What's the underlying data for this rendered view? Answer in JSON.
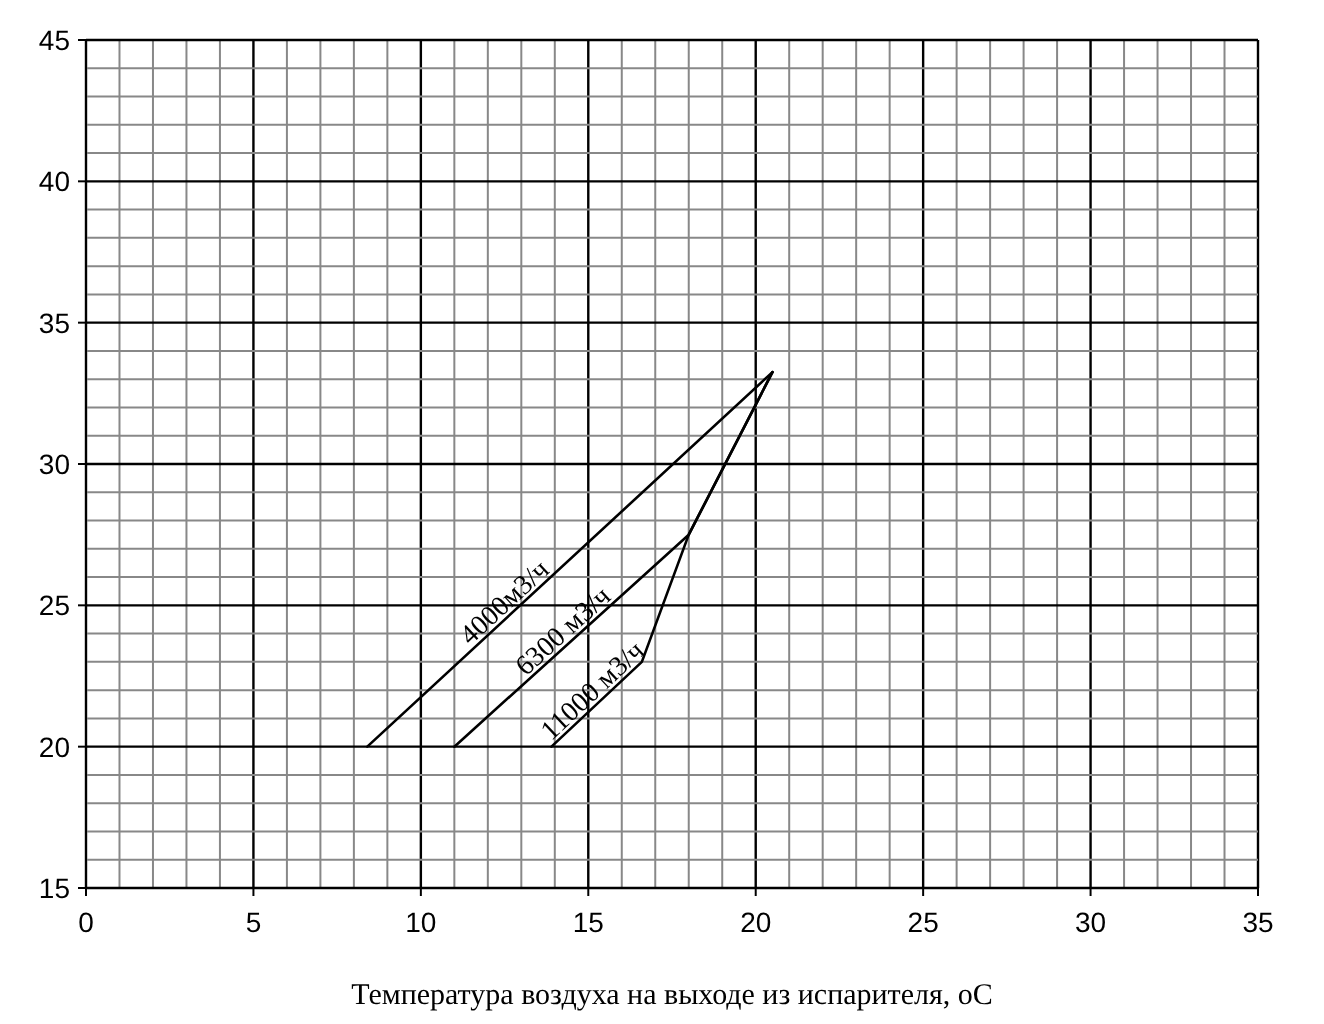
{
  "chart_data": {
    "type": "line",
    "xlabel": "Температура воздуха на выходе из испарителя, оС",
    "xlim": [
      0,
      35
    ],
    "ylim": [
      15,
      45
    ],
    "xticks": [
      0,
      {
        "value": 1,
        "label": null
      },
      {
        "value": 2,
        "label": null
      },
      {
        "value": 3,
        "label": null
      },
      {
        "value": 4,
        "label": null
      },
      5,
      {
        "value": 6,
        "label": null
      },
      {
        "value": 7,
        "label": null
      },
      {
        "value": 8,
        "label": null
      },
      {
        "value": 9,
        "label": null
      },
      10,
      {
        "value": 11,
        "label": null
      },
      {
        "value": 12,
        "label": null
      },
      {
        "value": 13,
        "label": null
      },
      {
        "value": 14,
        "label": null
      },
      15,
      {
        "value": 16,
        "label": null
      },
      {
        "value": 17,
        "label": null
      },
      {
        "value": 18,
        "label": null
      },
      {
        "value": 19,
        "label": null
      },
      20,
      {
        "value": 21,
        "label": null
      },
      {
        "value": 22,
        "label": null
      },
      {
        "value": 23,
        "label": null
      },
      {
        "value": 24,
        "label": null
      },
      25,
      {
        "value": 26,
        "label": null
      },
      {
        "value": 27,
        "label": null
      },
      {
        "value": 28,
        "label": null
      },
      {
        "value": 29,
        "label": null
      },
      30,
      {
        "value": 31,
        "label": null
      },
      {
        "value": 32,
        "label": null
      },
      {
        "value": 33,
        "label": null
      },
      {
        "value": 34,
        "label": null
      },
      35
    ],
    "yticks": [
      15,
      {
        "value": 16,
        "label": null
      },
      {
        "value": 17,
        "label": null
      },
      {
        "value": 18,
        "label": null
      },
      {
        "value": 19,
        "label": null
      },
      20,
      {
        "value": 21,
        "label": null
      },
      {
        "value": 22,
        "label": null
      },
      {
        "value": 23,
        "label": null
      },
      {
        "value": 24,
        "label": null
      },
      25,
      {
        "value": 26,
        "label": null
      },
      {
        "value": 27,
        "label": null
      },
      {
        "value": 28,
        "label": null
      },
      {
        "value": 29,
        "label": null
      },
      30,
      {
        "value": 31,
        "label": null
      },
      {
        "value": 32,
        "label": null
      },
      {
        "value": 33,
        "label": null
      },
      {
        "value": 34,
        "label": null
      },
      35,
      {
        "value": 36,
        "label": null
      },
      {
        "value": 37,
        "label": null
      },
      {
        "value": 38,
        "label": null
      },
      {
        "value": 39,
        "label": null
      },
      40,
      {
        "value": 41,
        "label": null
      },
      {
        "value": 42,
        "label": null
      },
      {
        "value": 43,
        "label": null
      },
      {
        "value": 44,
        "label": null
      },
      45
    ],
    "grid": true,
    "marker": "none",
    "line_style": "solid",
    "series": [
      {
        "name": "4000м3/ч",
        "color": "#000000",
        "x": [
          8.4,
          20.5
        ],
        "values": [
          20,
          33.25
        ]
      },
      {
        "name": "6300 м3/ч",
        "color": "#000000",
        "x": [
          11,
          18,
          20.5
        ],
        "values": [
          20,
          27.5,
          33.25
        ]
      },
      {
        "name": "11000 м3/ч",
        "color": "#000000",
        "x": [
          13.9,
          16.6,
          18,
          20.5
        ],
        "values": [
          20,
          23,
          27.5,
          33.25
        ]
      }
    ]
  }
}
